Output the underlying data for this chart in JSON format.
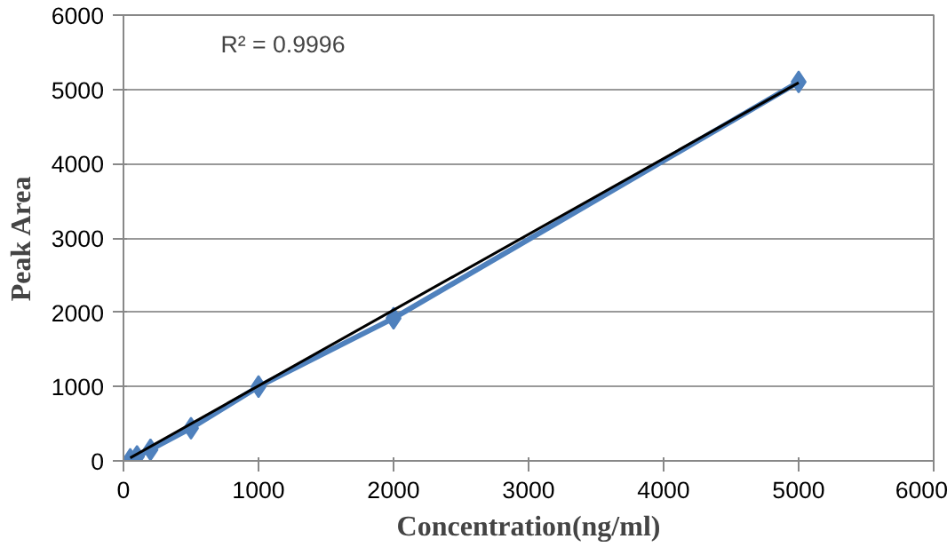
{
  "chart_data": {
    "type": "line",
    "xlabel": "Concentration(ng/ml)",
    "ylabel": "Peak Area",
    "x": [
      50,
      100,
      200,
      500,
      1000,
      2000,
      5000
    ],
    "series": [
      {
        "color": "#4f81bd",
        "values": [
          20,
          60,
          150,
          440,
          1000,
          1920,
          5100
        ],
        "marker": "diamond"
      },
      {
        "type": "line",
        "color": "#000000",
        "x": [
          50,
          5000
        ],
        "values": [
          40,
          5090
        ],
        "marker": "none"
      }
    ],
    "xlim": [
      0,
      6000
    ],
    "xticks": [
      0,
      1000,
      2000,
      3000,
      4000,
      5000,
      6000
    ],
    "ylim": [
      0,
      6000
    ],
    "yticks": [
      0,
      1000,
      2000,
      3000,
      4000,
      5000,
      6000
    ],
    "grid": "y",
    "annotations": [
      "R² = 0.9996"
    ]
  }
}
